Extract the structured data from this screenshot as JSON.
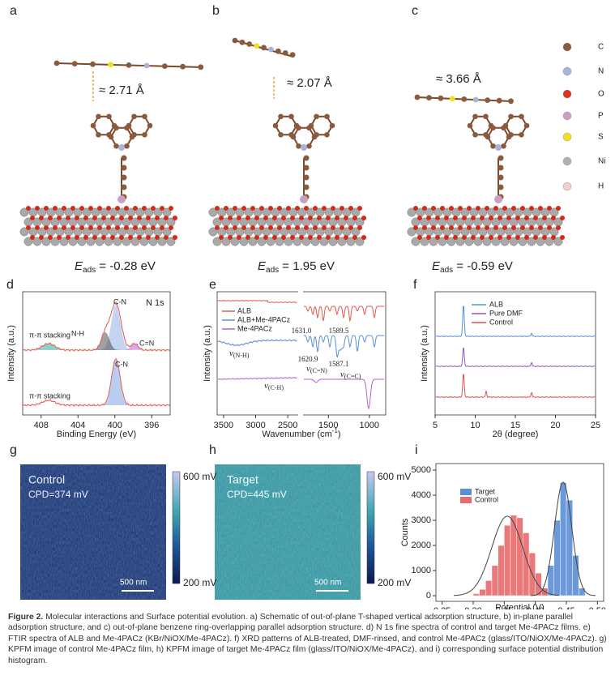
{
  "figure": {
    "panels": [
      {
        "label": "a",
        "distance": "≈ 2.71 Å",
        "energy": " = -0.28 eV"
      },
      {
        "label": "b",
        "distance": "≈ 2.07 Å",
        "energy": " = 1.95 eV"
      },
      {
        "label": "c",
        "distance": "≈ 3.66 Å",
        "energy": " = -0.59 eV"
      }
    ],
    "energy_symbol": "E",
    "energy_subscript": "ads",
    "element_legend": [
      "C",
      "N",
      "O",
      "P",
      "S",
      "Ni",
      "H"
    ],
    "kpfm": [
      {
        "label": "g",
        "title": "Control",
        "cpd": "CPD=374 mV",
        "scale": "500 nm",
        "cmax": "600 mV",
        "cmin": "200 mV"
      },
      {
        "label": "h",
        "title": "Target",
        "cpd": "CPD=445 mV",
        "scale": "500 nm",
        "cmax": "600 mV",
        "cmin": "200 mV"
      }
    ]
  },
  "chart_data": [
    {
      "type": "line",
      "label": "d",
      "xlabel": "Binding Energy (eV)",
      "ylabel": "Intensity (a.u.)",
      "xlim": [
        410,
        394
      ],
      "xticks": [
        408,
        404,
        400,
        396
      ],
      "annotations": [
        "N 1s",
        "C-N",
        "N-H",
        "C=N",
        "π-π stacking",
        "C-N",
        "π-π stacking"
      ]
    },
    {
      "type": "line",
      "label": "e",
      "xlabel": "Wavenumber (cm",
      "xlabel_sup": "-1",
      "xlabel_end": ")",
      "ylabel": "Intensity (a.u.)",
      "xlim": [
        3600,
        800
      ],
      "xbreak": [
        2350,
        1800
      ],
      "xticks": [
        3500,
        3000,
        2500,
        1500,
        1000
      ],
      "series": [
        {
          "name": "ALB",
          "color": "#e05a50"
        },
        {
          "name": "ALB+Me-4PACz",
          "color": "#5b8fd6"
        },
        {
          "name": "Me-4PACz",
          "color": "#b060d0"
        }
      ],
      "peak_labels": [
        "1631.0",
        "1589.5",
        "1620.9",
        "1587.1"
      ],
      "modes": [
        {
          "symbol": "ν",
          "sub": "(N-H)"
        },
        {
          "symbol": "ν",
          "sub": "(C=N)"
        },
        {
          "symbol": "ν",
          "sub": "(C=C)"
        },
        {
          "symbol": "ν",
          "sub": "(C-H)"
        }
      ]
    },
    {
      "type": "line",
      "label": "f",
      "xlabel": "2θ (degree)",
      "ylabel": "Intensity (a.u.)",
      "xlim": [
        5,
        25
      ],
      "xticks": [
        5,
        10,
        15,
        20,
        25
      ],
      "series": [
        {
          "name": "ALB",
          "color": "#5b8fd6"
        },
        {
          "name": "Pure DMF",
          "color": "#8a5bc6"
        },
        {
          "name": "Control",
          "color": "#e05252"
        }
      ]
    },
    {
      "type": "histogram",
      "label": "i",
      "xlabel": "Potential (V)",
      "ylabel": "Counts",
      "xlim": [
        0.24,
        0.51
      ],
      "ylim": [
        0,
        5000
      ],
      "xticks": [
        0.25,
        {
          "value": 0.3,
          "label": "0.30"
        },
        0.35,
        {
          "value": 0.4,
          "label": "0.40"
        },
        0.45,
        {
          "value": 0.5,
          "label": "0.50"
        }
      ],
      "yticks": [
        0,
        1000,
        2000,
        3000,
        4000,
        5000
      ],
      "series": [
        {
          "name": "Target",
          "color": "#5b8ed6",
          "bins": [
            0.41,
            0.42,
            0.43,
            0.44,
            0.45,
            0.46,
            0.47,
            0.48
          ],
          "counts": [
            300,
            1200,
            3000,
            4500,
            3800,
            1600,
            300
          ]
        },
        {
          "name": "Control",
          "color": "#e86a6a",
          "bins": [
            0.3,
            0.31,
            0.32,
            0.33,
            0.34,
            0.35,
            0.36,
            0.37,
            0.38,
            0.39,
            0.4,
            0.41,
            0.42
          ],
          "counts": [
            80,
            250,
            600,
            1200,
            2000,
            2800,
            3200,
            3100,
            2500,
            1700,
            900,
            300
          ]
        }
      ]
    }
  ],
  "caption": {
    "label": "Figure 2.",
    "text": " Molecular interactions and Surface potential evolution. a) Schematic of out-of-plane T-shaped vertical adsorption structure, b) in-plane parallel adsorption structure, and c) out-of-plane benzene ring-overlapping parallel adsorption structure. d) N 1s fine spectra of control and target Me-4PACz films. e) FTIR spectra of ALB and Me-4PACz (KBr/NiOX/Me-4PACz). f) XRD patterns of ALB-treated, DMF-rinsed, and control Me-4PACz (glass/ITO/NiOX/Me-4PACz). g) KPFM image of control Me-4PACz film, h) KPFM image of target Me-4PACz film (glass/ITO/NiOX/Me-4PACz), and i) corresponding surface potential distribution histogram."
  }
}
